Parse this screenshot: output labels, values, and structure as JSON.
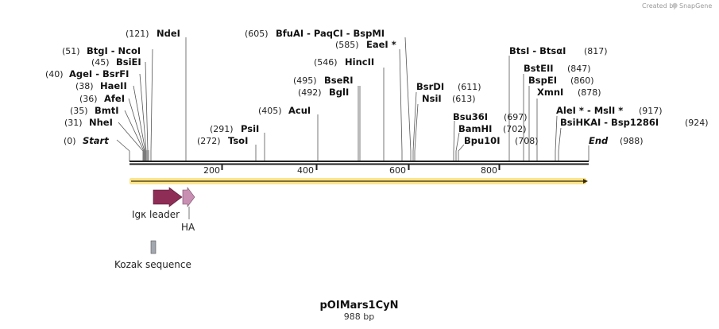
{
  "credit": {
    "prefix": "Created by",
    "brand": "SnapGene"
  },
  "plasmid": {
    "name": "pOIMars1CyN",
    "length_label": "988 bp",
    "length": 988
  },
  "colors": {
    "leader": "#8e2d55",
    "ha": "#c98fb3",
    "kozak": "#a3a7b0",
    "orf": "#f6c400"
  },
  "ticks": [
    {
      "value": 200,
      "label": "200"
    },
    {
      "value": 400,
      "label": "400"
    },
    {
      "value": 600,
      "label": "600"
    },
    {
      "value": 800,
      "label": "800"
    }
  ],
  "sites": [
    {
      "id": "start",
      "num": "(0)",
      "name": "Start",
      "italic": true
    },
    {
      "id": "nhei",
      "num": "(31)",
      "name": "NheI"
    },
    {
      "id": "bmti",
      "num": "(35)",
      "name": "BmtI"
    },
    {
      "id": "afei",
      "num": "(36)",
      "name": "AfeI"
    },
    {
      "id": "haeii",
      "num": "(38)",
      "name": "HaeII"
    },
    {
      "id": "agei",
      "num": "(40)",
      "name": "AgeI  -  BsrFI"
    },
    {
      "id": "bsiei",
      "num": "(45)",
      "name": "BsiEI"
    },
    {
      "id": "btgi",
      "num": "(51)",
      "name": "BtgI  -  NcoI"
    },
    {
      "id": "ndei",
      "num": "(121)",
      "name": "NdeI"
    },
    {
      "id": "tsoi",
      "num": "(272)",
      "name": "TsoI"
    },
    {
      "id": "psii",
      "num": "(291)",
      "name": "PsiI"
    },
    {
      "id": "acui",
      "num": "(405)",
      "name": "AcuI"
    },
    {
      "id": "bgli",
      "num": "(492)",
      "name": "BglI"
    },
    {
      "id": "bseri",
      "num": "(495)",
      "name": "BseRI"
    },
    {
      "id": "hincii",
      "num": "(546)",
      "name": "HincII"
    },
    {
      "id": "eaei",
      "num": "(585)",
      "name": "EaeI *"
    },
    {
      "id": "bfuai",
      "num": "(605)",
      "name": "BfuAI  -  PaqCI  -  BspMI"
    },
    {
      "id": "bsrdi",
      "num": "(611)",
      "name": "BsrDI"
    },
    {
      "id": "nsii",
      "num": "(613)",
      "name": "NsiI"
    },
    {
      "id": "bsu36i",
      "num": "(697)",
      "name": "Bsu36I"
    },
    {
      "id": "bamhi",
      "num": "(702)",
      "name": "BamHI"
    },
    {
      "id": "bpu10i",
      "num": "(708)",
      "name": "Bpu10I"
    },
    {
      "id": "btsi",
      "num": "(817)",
      "name": "BtsI  -  BtsαI"
    },
    {
      "id": "bsteii",
      "num": "(847)",
      "name": "BstEII"
    },
    {
      "id": "bspei",
      "num": "(860)",
      "name": "BspEI"
    },
    {
      "id": "xmni",
      "num": "(878)",
      "name": "XmnI"
    },
    {
      "id": "alei",
      "num": "(917)",
      "name": "AleI *  -  MslI *"
    },
    {
      "id": "bsihkai",
      "num": "(924)",
      "name": "BsiHKAI  -  Bsp1286I"
    },
    {
      "id": "end",
      "num": "(988)",
      "name": "End",
      "italic": true
    }
  ],
  "features": [
    {
      "id": "leader",
      "label": "Igκ leader"
    },
    {
      "id": "ha",
      "label": "HA"
    },
    {
      "id": "kozak",
      "label": "Kozak sequence"
    }
  ]
}
